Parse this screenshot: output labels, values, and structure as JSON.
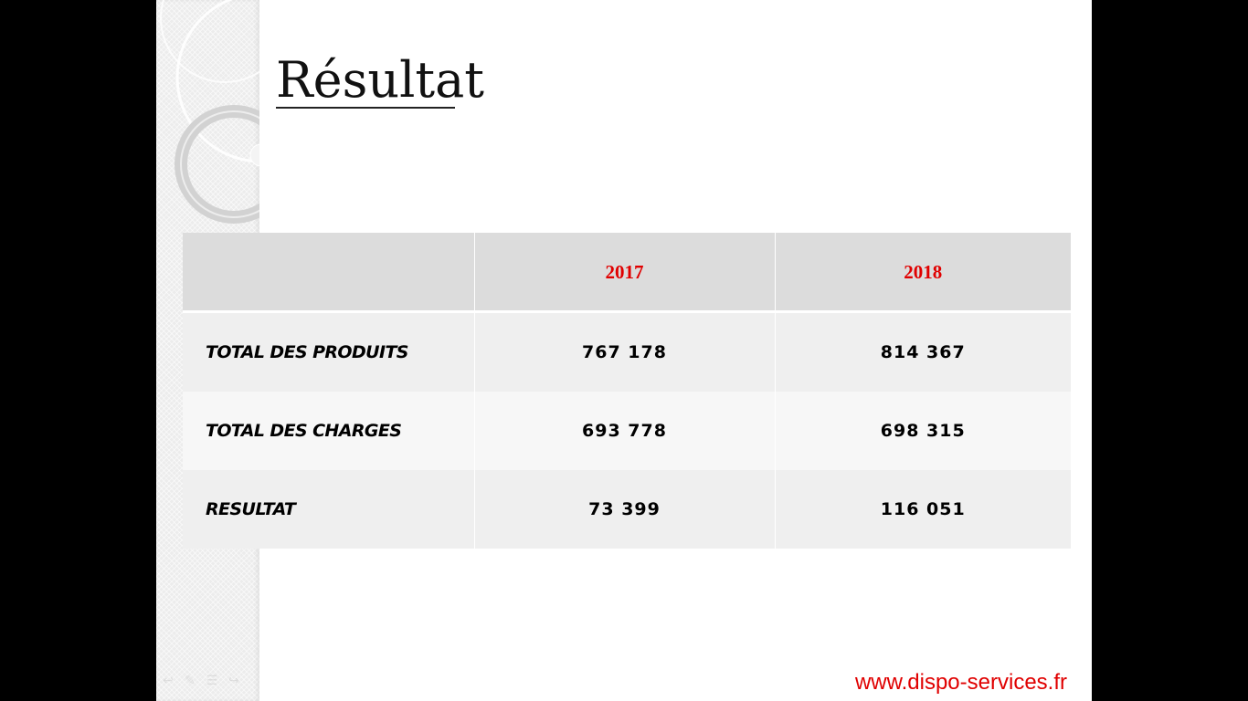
{
  "slide": {
    "title": "Résultat",
    "footer_url": "www.dispo-services.fr"
  },
  "table": {
    "headers": [
      "",
      "2017",
      "2018"
    ],
    "rows": [
      {
        "label": "TOTAL DES PRODUITS",
        "values": [
          "767 178",
          "814 367"
        ]
      },
      {
        "label": "TOTAL DES CHARGES",
        "values": [
          "693 778",
          "698 315"
        ]
      },
      {
        "label": "RESULTAT",
        "values": [
          "73 399",
          "116 051"
        ]
      }
    ]
  },
  "colors": {
    "year_header": "#e00000",
    "footer_url": "#e00000",
    "header_bg": "#dcdcdc"
  },
  "icons": [
    "back-arrow-icon",
    "pen-icon",
    "slides-menu-icon",
    "forward-arrow-icon"
  ]
}
